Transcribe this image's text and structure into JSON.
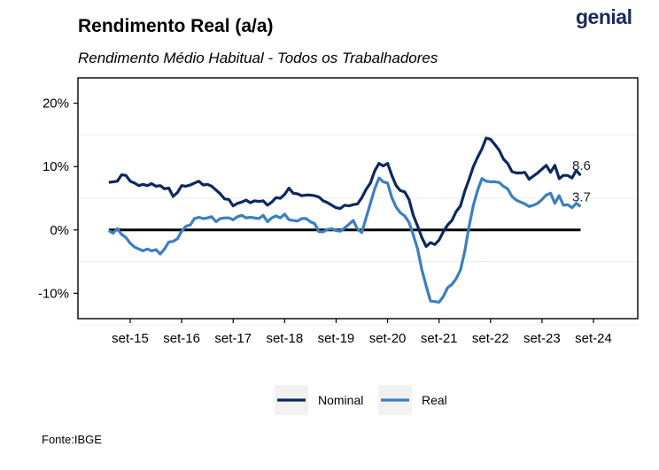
{
  "header": {
    "title": "Rendimento Real (a/a)",
    "subtitle": "Rendimento Médio Habitual - Todos os Trabalhadores",
    "logo": "genial"
  },
  "footer": {
    "source": "Fonte:IBGE"
  },
  "colors": {
    "nominal": "#0d2860",
    "real": "#3a7fc1",
    "zero_line": "#000000"
  },
  "chart_data": {
    "type": "line",
    "title": "Rendimento Real (a/a)",
    "subtitle": "Rendimento Médio Habitual - Todos os Trabalhadores",
    "xlabel": "",
    "ylabel": "",
    "x_ticks": [
      "set-15",
      "set-16",
      "set-17",
      "set-18",
      "set-19",
      "set-20",
      "set-21",
      "set-22",
      "set-23",
      "set-24"
    ],
    "y_ticks": [
      "-10%",
      "0%",
      "10%",
      "20%"
    ],
    "y_tick_values": [
      -10,
      0,
      10,
      20
    ],
    "ylim": [
      -14,
      24
    ],
    "grid": false,
    "legend": "bottom",
    "x_start": "2015-04",
    "series": [
      {
        "name": "Nominal",
        "color": "#0d2860",
        "end_label": "8.6",
        "values": [
          7.5,
          7.6,
          7.7,
          8.7,
          8.6,
          7.7,
          7.4,
          7.0,
          7.2,
          7.0,
          7.3,
          6.9,
          7.0,
          6.5,
          6.6,
          5.3,
          5.9,
          7.0,
          6.9,
          7.1,
          7.4,
          7.7,
          7.1,
          7.2,
          6.9,
          6.3,
          5.7,
          4.9,
          4.8,
          3.8,
          4.2,
          4.4,
          4.7,
          4.3,
          4.6,
          4.5,
          4.6,
          3.9,
          4.4,
          5.1,
          5.0,
          5.6,
          6.6,
          5.8,
          5.7,
          5.4,
          5.5,
          5.5,
          5.4,
          5.2,
          4.6,
          4.3,
          3.9,
          3.5,
          3.4,
          3.9,
          3.8,
          4.0,
          4.1,
          5.1,
          6.4,
          7.4,
          9.3,
          10.5,
          10.1,
          10.5,
          8.6,
          7.0,
          6.2,
          6.0,
          4.8,
          2.3,
          0.6,
          -1.2,
          -2.6,
          -2.0,
          -2.3,
          -1.6,
          -0.3,
          0.8,
          1.5,
          2.9,
          3.8,
          6.1,
          8.0,
          10.0,
          11.5,
          12.8,
          14.5,
          14.3,
          13.5,
          12.6,
          11.2,
          10.5,
          9.2,
          9.0,
          9.0,
          9.1,
          8.0,
          8.5,
          9.0,
          9.6,
          10.2,
          9.1,
          10.2,
          8.1,
          8.6,
          8.6,
          8.2,
          9.4,
          8.6
        ]
      },
      {
        "name": "Real",
        "color": "#3a7fc1",
        "end_label": "3.7",
        "values": [
          -0.1,
          -0.5,
          0.2,
          -0.7,
          -1.2,
          -2.1,
          -2.7,
          -3.0,
          -3.3,
          -3.0,
          -3.3,
          -3.1,
          -3.8,
          -3.0,
          -1.9,
          -1.8,
          -1.4,
          -0.2,
          0.6,
          0.8,
          1.8,
          2.0,
          1.8,
          1.9,
          2.1,
          1.3,
          1.8,
          1.9,
          1.9,
          1.6,
          2.1,
          2.3,
          1.9,
          2.0,
          1.9,
          1.8,
          2.3,
          1.3,
          1.9,
          2.2,
          1.9,
          2.5,
          1.6,
          1.5,
          1.4,
          1.8,
          1.8,
          1.3,
          1.0,
          -0.3,
          -0.3,
          0.1,
          0.2,
          -0.1,
          -0.2,
          0.3,
          0.9,
          1.5,
          0.1,
          -0.4,
          1.9,
          4.2,
          6.5,
          8.2,
          7.6,
          7.4,
          5.1,
          3.6,
          2.7,
          2.2,
          1.2,
          -0.8,
          -3.0,
          -6.3,
          -8.8,
          -11.2,
          -11.3,
          -11.4,
          -10.5,
          -9.1,
          -8.6,
          -7.7,
          -6.3,
          -3.4,
          0.6,
          3.9,
          6.3,
          8.1,
          7.7,
          7.6,
          7.6,
          7.5,
          6.9,
          6.5,
          5.3,
          4.7,
          4.4,
          4.1,
          3.7,
          3.9,
          4.2,
          4.8,
          5.5,
          5.8,
          4.2,
          5.4,
          3.9,
          4.0,
          3.5,
          4.2,
          3.7
        ]
      }
    ]
  }
}
